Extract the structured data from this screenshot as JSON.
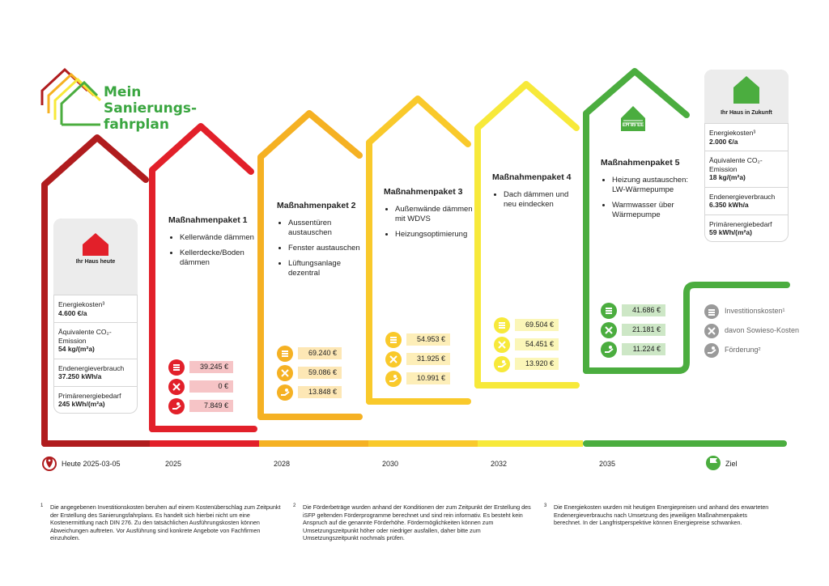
{
  "logo": {
    "line1": "Mein",
    "line2": "Sanierungs-",
    "line3": "fahrplan"
  },
  "today_card": {
    "caption": "Ihr Haus heute",
    "rows": [
      {
        "label": "Energiekosten³",
        "value": "4.600 €/a"
      },
      {
        "label": "Äquivalente CO₂-Emission",
        "value": "54 kg/(m²a)"
      },
      {
        "label": "Endenergieverbrauch",
        "value": "37.250 kWh/a"
      },
      {
        "label": "Primärenergiebedarf",
        "value": "245 kWh/(m²a)"
      }
    ]
  },
  "future_card": {
    "caption": "Ihr Haus in Zukunft",
    "rows": [
      {
        "label": "Energiekosten³",
        "value": "2.000 €/a"
      },
      {
        "label": "Äquivalente CO₂-Emission",
        "value": "18 kg/(m²a)"
      },
      {
        "label": "Endenergieverbrauch",
        "value": "6.350 kWh/a"
      },
      {
        "label": "Primärenergiebedarf",
        "value": "59 kWh/(m²a)"
      }
    ]
  },
  "packages": [
    {
      "title": "Maßnahmenpaket 1",
      "items": [
        "Kellerwände dämmen",
        "Kellerdecke/Boden dämmen"
      ],
      "invest": "39.245 €",
      "sowieso": "0 €",
      "foerderung": "7.849 €"
    },
    {
      "title": "Maßnahmenpaket 2",
      "items": [
        "Aussentüren austauschen",
        "Fenster austauschen",
        "Lüftungsanlage dezentral"
      ],
      "invest": "69.240 €",
      "sowieso": "59.086 €",
      "foerderung": "13.848 €"
    },
    {
      "title": "Maßnahmenpaket 3",
      "items": [
        "Außenwände dämmen mit WDVS",
        "Heizungsoptimierung"
      ],
      "invest": "54.953 €",
      "sowieso": "31.925 €",
      "foerderung": "10.991 €"
    },
    {
      "title": "Maßnahmenpaket 4",
      "items": [
        "Dach dämmen und neu eindecken"
      ],
      "invest": "69.504 €",
      "sowieso": "54.451 €",
      "foerderung": "13.920 €"
    },
    {
      "title": "Maßnahmenpaket 5",
      "items": [
        "Heizung austauschen: LW-Wärmepumpe",
        "Warmwasser über Wärmepumpe"
      ],
      "invest": "41.686 €",
      "sowieso": "21.181 €",
      "foerderung": "11.224 €"
    }
  ],
  "eh_badge": "EH 85 EE",
  "timeline": {
    "today": "Heute 2025-03-05",
    "years": [
      "2025",
      "2028",
      "2030",
      "2032",
      "2035"
    ],
    "goal": "Ziel"
  },
  "legend": {
    "invest": "Investitionskosten¹",
    "sowieso": "davon Sowieso-Kosten",
    "foerderung": "Förderung²"
  },
  "footnotes": [
    {
      "num": "1",
      "text": "Die angegebenen Investitionskosten beruhen auf einem Kostenüberschlag zum Zeitpunkt der Erstellung des Sanierungsfahrplans. Es handelt sich hierbei nicht um eine Kostenermittlung nach DIN 276. Zu den tatsächlichen Ausführungskosten können Abweichungen auftreten. Vor Ausführung sind konkrete Angebote von Fachfirmen einzuholen."
    },
    {
      "num": "2",
      "text": "Die Förderbeträge wurden anhand der Konditionen der zum Zeitpunkt der Erstellung des iSFP geltenden Förderprogramme berechnet und sind rein informativ. Es besteht kein Anspruch auf die genannte Förderhöhe. Fördermöglichkeiten können zum Umsetzungszeitpunkt höher oder niedriger ausfallen, daher bitte zum Umsetzungszeitpunkt nochmals prüfen."
    },
    {
      "num": "3",
      "text": "Die Energiekosten wurden mit heutigen Energiepreisen und anhand des erwarteten Endenergieverbrauchs nach Umsetzung des jeweiligen Maßnahmenpakets berechnet. In der Langfristperspektive können Energiepreise schwanken."
    }
  ],
  "colors": {
    "dark_red": "#b01c1e",
    "red": "#e2202a",
    "orange": "#f5b123",
    "yellow_orange": "#f9c92b",
    "yellow": "#f7e93a",
    "green": "#4bad3f",
    "logo_green": "#3aa640"
  }
}
